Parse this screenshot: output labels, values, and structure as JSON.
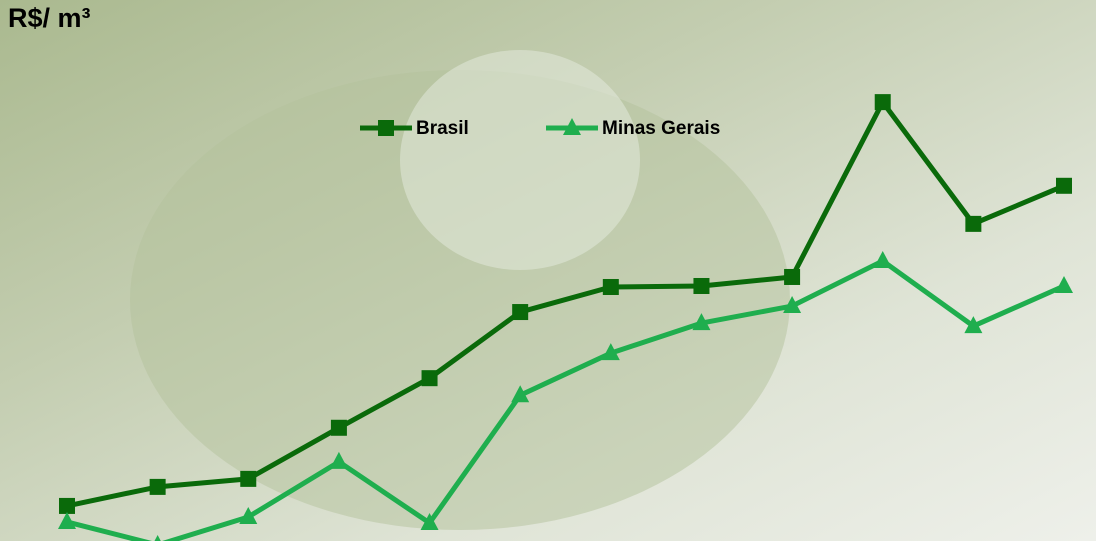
{
  "chart_data": {
    "type": "line",
    "title": "R$/ m³",
    "categories": [
      null,
      null,
      null,
      null,
      null,
      null,
      null,
      null,
      null,
      null,
      null,
      null
    ],
    "ylim": [
      0,
      100
    ],
    "legend": "top",
    "series": [
      {
        "name": "Brasil",
        "color": "#0a6a0a",
        "marker": "square",
        "values": [
          7.0,
          10.8,
          12.4,
          22.6,
          32.5,
          45.7,
          50.7,
          50.9,
          52.7,
          87.6,
          63.3,
          70.9
        ]
      },
      {
        "name": "Minas Gerais",
        "color": "#1fae4e",
        "marker": "triangle",
        "values": [
          3.8,
          -0.8,
          4.8,
          15.8,
          3.6,
          29.1,
          37.5,
          43.5,
          46.9,
          55.9,
          42.9,
          50.9
        ]
      }
    ]
  }
}
